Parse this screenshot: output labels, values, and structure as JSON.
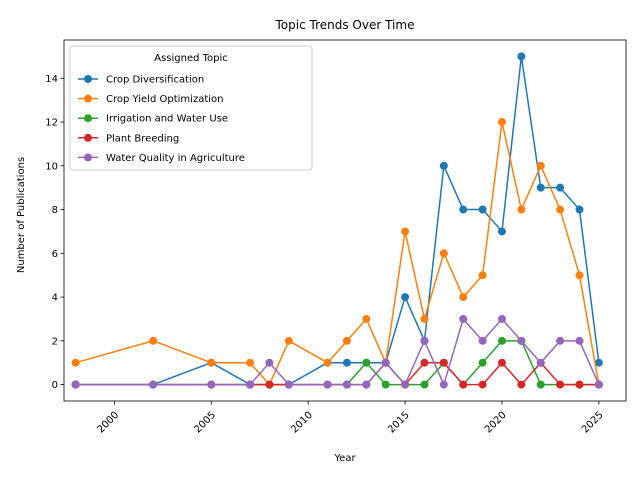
{
  "chart_data": {
    "type": "line",
    "title": "Topic Trends Over Time",
    "xlabel": "Year",
    "ylabel": "Number of Publications",
    "xlim": [
      1997.4,
      2026.4
    ],
    "ylim": [
      -0.75,
      15.75
    ],
    "xticks": [
      2000,
      2005,
      2010,
      2015,
      2020,
      2025
    ],
    "yticks": [
      0,
      2,
      4,
      6,
      8,
      10,
      12,
      14
    ],
    "grid": false,
    "legend": {
      "title": "Assigned Topic",
      "placement": "top-left"
    },
    "x": [
      1998,
      2002,
      2005,
      2007,
      2008,
      2009,
      2011,
      2012,
      2013,
      2014,
      2015,
      2016,
      2017,
      2018,
      2019,
      2020,
      2021,
      2022,
      2023,
      2024,
      2025
    ],
    "series": [
      {
        "name": "Crop Diversification",
        "color": "#1f77b4",
        "values": [
          0,
          0,
          1,
          0,
          0,
          0,
          1,
          1,
          1,
          1,
          4,
          2,
          10,
          8,
          8,
          7,
          15,
          9,
          9,
          8,
          1
        ]
      },
      {
        "name": "Crop Yield Optimization",
        "color": "#ff7f0e",
        "values": [
          1,
          2,
          1,
          1,
          0,
          2,
          1,
          2,
          3,
          1,
          7,
          3,
          6,
          4,
          5,
          12,
          8,
          10,
          8,
          5,
          0
        ]
      },
      {
        "name": "Irrigation and Water Use",
        "color": "#2ca02c",
        "values": [
          0,
          0,
          0,
          0,
          0,
          0,
          0,
          0,
          1,
          0,
          0,
          0,
          1,
          0,
          1,
          2,
          2,
          0,
          0,
          0,
          0
        ]
      },
      {
        "name": "Plant Breeding",
        "color": "#d62728",
        "values": [
          0,
          0,
          0,
          0,
          0,
          0,
          0,
          0,
          0,
          1,
          0,
          1,
          1,
          0,
          0,
          1,
          0,
          1,
          0,
          0,
          0
        ]
      },
      {
        "name": "Water Quality in Agriculture",
        "color": "#9467bd",
        "values": [
          0,
          0,
          0,
          0,
          1,
          0,
          0,
          0,
          0,
          1,
          0,
          2,
          0,
          3,
          2,
          3,
          2,
          1,
          2,
          2,
          0
        ]
      }
    ]
  }
}
